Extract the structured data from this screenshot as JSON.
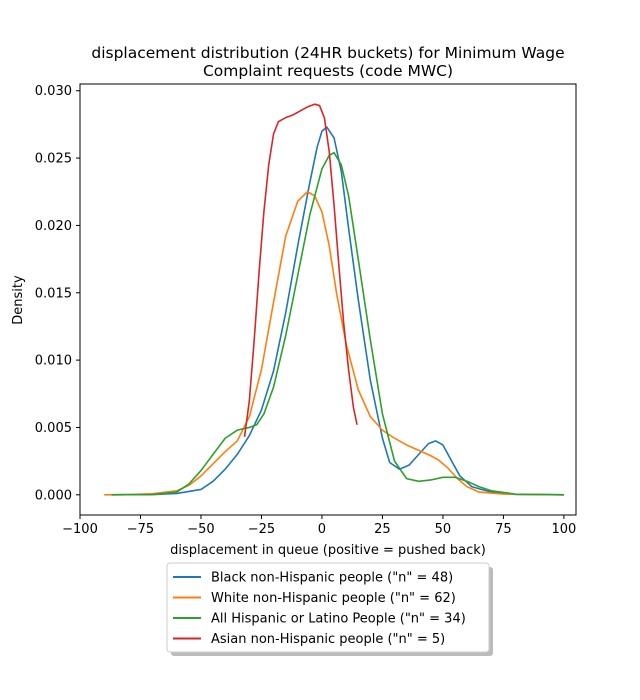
{
  "chart_data": {
    "type": "line",
    "title_line1": "displacement distribution (24HR buckets) for Minimum Wage",
    "title_line2": "Complaint requests (code MWC)",
    "xlabel": "displacement in queue (positive = pushed back)",
    "ylabel": "Density",
    "xlim": [
      -100,
      105
    ],
    "ylim": [
      -0.0015,
      0.0305
    ],
    "xticks": [
      -100,
      -75,
      -50,
      -25,
      0,
      25,
      50,
      75,
      100
    ],
    "xtick_labels": [
      "−100",
      "−75",
      "−50",
      "−25",
      "0",
      "25",
      "50",
      "75",
      "100"
    ],
    "yticks": [
      0.0,
      0.005,
      0.01,
      0.015,
      0.02,
      0.025,
      0.03
    ],
    "ytick_labels": [
      "0.000",
      "0.005",
      "0.010",
      "0.015",
      "0.020",
      "0.025",
      "0.030"
    ],
    "grid": false,
    "legend_position": "below plot",
    "series": [
      {
        "name": "Black non-Hispanic people (\"n\" = 48)",
        "color": "#1f77b4",
        "points": [
          [
            -87,
            0
          ],
          [
            -70,
            2e-05
          ],
          [
            -60,
            0.0001
          ],
          [
            -50,
            0.0004
          ],
          [
            -45,
            0.001
          ],
          [
            -40,
            0.0019
          ],
          [
            -35,
            0.003
          ],
          [
            -30,
            0.0044
          ],
          [
            -25,
            0.0063
          ],
          [
            -20,
            0.0092
          ],
          [
            -15,
            0.0135
          ],
          [
            -10,
            0.0185
          ],
          [
            -5,
            0.0232
          ],
          [
            -2,
            0.0258
          ],
          [
            0,
            0.027
          ],
          [
            2,
            0.0273
          ],
          [
            5,
            0.0265
          ],
          [
            8,
            0.024
          ],
          [
            11,
            0.0198
          ],
          [
            15,
            0.0145
          ],
          [
            20,
            0.0085
          ],
          [
            25,
            0.0042
          ],
          [
            28,
            0.0024
          ],
          [
            32,
            0.0019
          ],
          [
            36,
            0.0022
          ],
          [
            40,
            0.003
          ],
          [
            44,
            0.0038
          ],
          [
            47,
            0.004
          ],
          [
            50,
            0.0037
          ],
          [
            53,
            0.0027
          ],
          [
            57,
            0.0014
          ],
          [
            62,
            0.0006
          ],
          [
            70,
            0.0002
          ],
          [
            80,
            3e-05
          ],
          [
            100,
            0
          ]
        ]
      },
      {
        "name": "White non-Hispanic people (\"n\" = 62)",
        "color": "#ff7f0e",
        "points": [
          [
            -90,
            0
          ],
          [
            -80,
            2e-05
          ],
          [
            -70,
            8e-05
          ],
          [
            -60,
            0.0003
          ],
          [
            -55,
            0.0007
          ],
          [
            -50,
            0.0014
          ],
          [
            -45,
            0.0023
          ],
          [
            -40,
            0.0032
          ],
          [
            -35,
            0.004
          ],
          [
            -30,
            0.0058
          ],
          [
            -25,
            0.0093
          ],
          [
            -20,
            0.0143
          ],
          [
            -15,
            0.0192
          ],
          [
            -10,
            0.0218
          ],
          [
            -6,
            0.0225
          ],
          [
            -3,
            0.0222
          ],
          [
            0,
            0.021
          ],
          [
            3,
            0.0185
          ],
          [
            6,
            0.015
          ],
          [
            10,
            0.0112
          ],
          [
            15,
            0.0078
          ],
          [
            20,
            0.0058
          ],
          [
            25,
            0.0048
          ],
          [
            30,
            0.0042
          ],
          [
            35,
            0.0037
          ],
          [
            40,
            0.0033
          ],
          [
            45,
            0.0029
          ],
          [
            48,
            0.0026
          ],
          [
            52,
            0.002
          ],
          [
            56,
            0.0012
          ],
          [
            60,
            0.0006
          ],
          [
            65,
            0.0002
          ],
          [
            75,
            5e-05
          ],
          [
            100,
            0
          ]
        ]
      },
      {
        "name": "All Hispanic or Latino People (\"n\" = 34)",
        "color": "#2ca02c",
        "points": [
          [
            -87,
            0
          ],
          [
            -70,
            2e-05
          ],
          [
            -60,
            0.0002
          ],
          [
            -55,
            0.0008
          ],
          [
            -50,
            0.0018
          ],
          [
            -45,
            0.003
          ],
          [
            -40,
            0.0042
          ],
          [
            -35,
            0.0048
          ],
          [
            -30,
            0.005
          ],
          [
            -27,
            0.0052
          ],
          [
            -24,
            0.006
          ],
          [
            -20,
            0.008
          ],
          [
            -15,
            0.0118
          ],
          [
            -10,
            0.0163
          ],
          [
            -5,
            0.0208
          ],
          [
            0,
            0.0242
          ],
          [
            3,
            0.0252
          ],
          [
            5,
            0.0254
          ],
          [
            8,
            0.0245
          ],
          [
            11,
            0.0222
          ],
          [
            15,
            0.0175
          ],
          [
            20,
            0.0115
          ],
          [
            25,
            0.006
          ],
          [
            30,
            0.0025
          ],
          [
            35,
            0.0012
          ],
          [
            40,
            0.001
          ],
          [
            45,
            0.0011
          ],
          [
            50,
            0.0013
          ],
          [
            55,
            0.0013
          ],
          [
            60,
            0.001
          ],
          [
            65,
            0.0006
          ],
          [
            70,
            0.0003
          ],
          [
            80,
            5e-05
          ],
          [
            100,
            0
          ]
        ]
      },
      {
        "name": "Asian non-Hispanic people (\"n\" = 5)",
        "color": "#d62728",
        "points": [
          [
            -32,
            0.0043
          ],
          [
            -30,
            0.007
          ],
          [
            -28,
            0.0115
          ],
          [
            -26,
            0.0165
          ],
          [
            -24,
            0.021
          ],
          [
            -22,
            0.0245
          ],
          [
            -20,
            0.0268
          ],
          [
            -18,
            0.0277
          ],
          [
            -15,
            0.028
          ],
          [
            -12,
            0.0282
          ],
          [
            -9,
            0.0285
          ],
          [
            -6,
            0.0288
          ],
          [
            -3,
            0.029
          ],
          [
            -1,
            0.0289
          ],
          [
            1,
            0.028
          ],
          [
            3,
            0.0255
          ],
          [
            5,
            0.0215
          ],
          [
            7,
            0.017
          ],
          [
            9,
            0.0127
          ],
          [
            11,
            0.0093
          ],
          [
            13,
            0.0065
          ],
          [
            14.5,
            0.0052
          ]
        ]
      }
    ]
  }
}
